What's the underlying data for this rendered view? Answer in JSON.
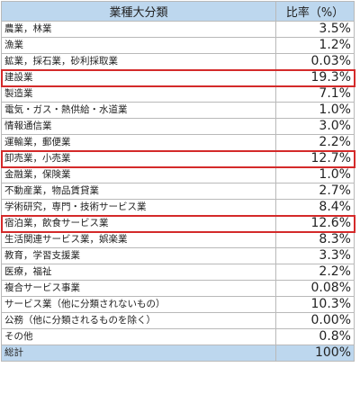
{
  "header": {
    "category": "業種大分類",
    "ratio": "比率（%）"
  },
  "rows": [
    {
      "label": "農業，林業",
      "value": "3.5%",
      "highlighted": false
    },
    {
      "label": "漁業",
      "value": "1.2%",
      "highlighted": false
    },
    {
      "label": "鉱業，採石業，砂利採取業",
      "value": "0.03%",
      "highlighted": false
    },
    {
      "label": "建設業",
      "value": "19.3%",
      "highlighted": true
    },
    {
      "label": "製造業",
      "value": "7.1%",
      "highlighted": false
    },
    {
      "label": "電気・ガス・熱供給・水道業",
      "value": "1.0%",
      "highlighted": false
    },
    {
      "label": "情報通信業",
      "value": "3.0%",
      "highlighted": false
    },
    {
      "label": "運輸業，郵便業",
      "value": "2.2%",
      "highlighted": false
    },
    {
      "label": "卸売業，小売業",
      "value": "12.7%",
      "highlighted": true
    },
    {
      "label": "金融業，保険業",
      "value": "1.0%",
      "highlighted": false
    },
    {
      "label": "不動産業，物品賃貸業",
      "value": "2.7%",
      "highlighted": false
    },
    {
      "label": "学術研究，専門・技術サービス業",
      "value": "8.4%",
      "highlighted": false
    },
    {
      "label": "宿泊業，飲食サービス業",
      "value": "12.6%",
      "highlighted": true
    },
    {
      "label": "生活関連サービス業，娯楽業",
      "value": "8.3%",
      "highlighted": false
    },
    {
      "label": "教育，学習支援業",
      "value": "3.3%",
      "highlighted": false
    },
    {
      "label": "医療，福祉",
      "value": "2.2%",
      "highlighted": false
    },
    {
      "label": "複合サービス事業",
      "value": "0.08%",
      "highlighted": false
    },
    {
      "label": "サービス業（他に分類されないもの）",
      "value": "10.3%",
      "highlighted": false
    },
    {
      "label": "公務（他に分類されるものを除く）",
      "value": "0.00%",
      "highlighted": false
    },
    {
      "label": "その他",
      "value": "0.8%",
      "highlighted": false
    }
  ],
  "total": {
    "label": "総計",
    "value": "100%"
  },
  "colors": {
    "header_bg": "#bdd7ee",
    "highlight_border": "#d42a2a",
    "grid": "#b9b9b9"
  }
}
